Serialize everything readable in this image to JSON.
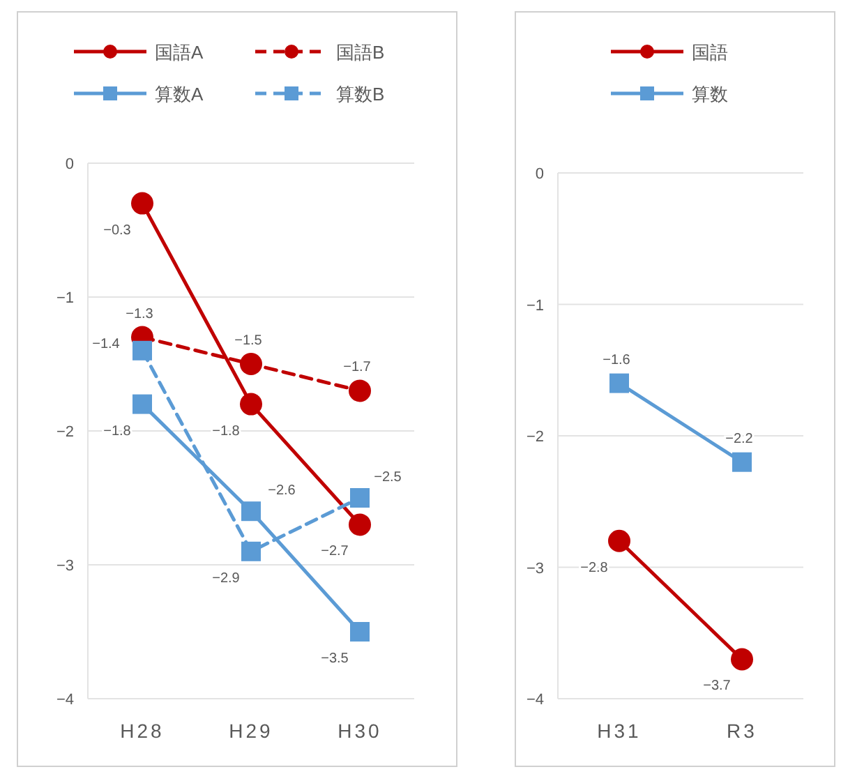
{
  "chart_data": [
    {
      "type": "line",
      "categories": [
        "H28",
        "H29",
        "H30"
      ],
      "ylim": [
        -4,
        0
      ],
      "yticks": [
        0,
        -1,
        -2,
        -3,
        -4
      ],
      "grid": "y",
      "legend": "top",
      "data_labels": true,
      "series": [
        {
          "name": "国語A",
          "color": "#c00000",
          "marker": "circle",
          "line_style": "solid",
          "values": [
            -0.3,
            -1.8,
            -2.7
          ]
        },
        {
          "name": "国語B",
          "color": "#c00000",
          "marker": "circle",
          "line_style": "dashed",
          "values": [
            -1.3,
            -1.5,
            -1.7
          ]
        },
        {
          "name": "算数A",
          "color": "#5b9bd5",
          "marker": "square",
          "line_style": "solid",
          "values": [
            -1.8,
            -2.6,
            -3.5
          ]
        },
        {
          "name": "算数B",
          "color": "#5b9bd5",
          "marker": "square",
          "line_style": "dashed",
          "values": [
            -1.4,
            -2.9,
            -2.5
          ]
        }
      ]
    },
    {
      "type": "line",
      "categories": [
        "H31",
        "R3"
      ],
      "ylim": [
        -4,
        0
      ],
      "yticks": [
        0,
        -1,
        -2,
        -3,
        -4
      ],
      "grid": "y",
      "legend": "top",
      "data_labels": true,
      "series": [
        {
          "name": "国語",
          "color": "#c00000",
          "marker": "circle",
          "line_style": "solid",
          "values": [
            -2.8,
            -3.7
          ]
        },
        {
          "name": "算数",
          "color": "#5b9bd5",
          "marker": "square",
          "line_style": "solid",
          "values": [
            -1.6,
            -2.2
          ]
        }
      ]
    }
  ]
}
